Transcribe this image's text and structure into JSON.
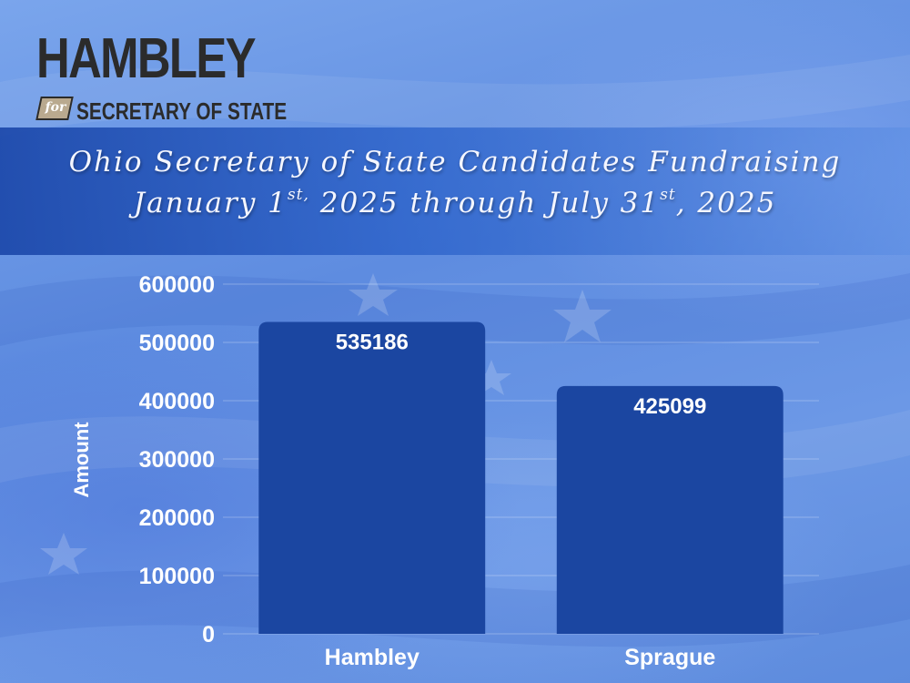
{
  "logo": {
    "name": "HAMBLEY",
    "for": "for",
    "office": "SECRETARY OF STATE",
    "text_color": "#2b2b2b",
    "badge_color": "#b9a98f"
  },
  "title": {
    "line1": "Ohio Secretary of State Candidates Fundraising",
    "line2_a": "January 1",
    "line2_sup1": "st,",
    "line2_b": " 2025 through July 31",
    "line2_sup2": "st",
    "line2_c": ", 2025"
  },
  "chart_data": {
    "type": "bar",
    "categories": [
      "Hambley",
      "Sprague"
    ],
    "values": [
      535186,
      425099
    ],
    "value_labels": [
      "535186",
      "425099"
    ],
    "ylabel": "Amount",
    "ylim": [
      0,
      600000
    ],
    "yticks": [
      0,
      100000,
      200000,
      300000,
      400000,
      500000,
      600000
    ],
    "ytick_labels": [
      "0",
      "100000",
      "200000",
      "300000",
      "400000",
      "500000",
      "600000"
    ],
    "grid": true,
    "bar_color": "#1b46a1",
    "text_color": "#ffffff"
  }
}
